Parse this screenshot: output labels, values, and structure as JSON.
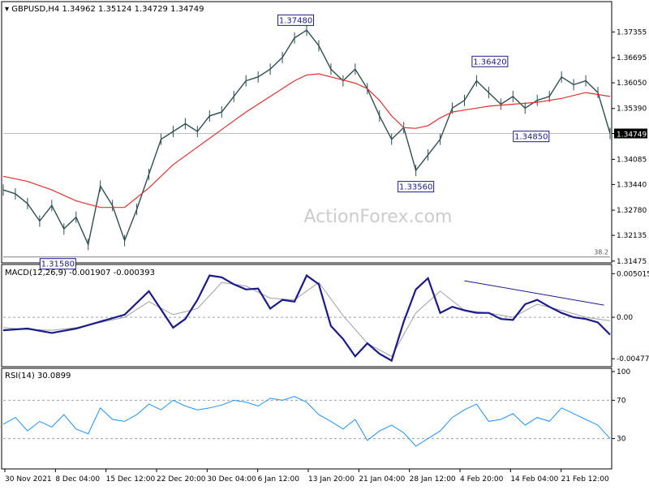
{
  "header": {
    "symbol": "GBPUSD,H4",
    "open": "1.34962",
    "high": "1.35124",
    "low": "1.34729",
    "close": "1.34749"
  },
  "watermark": "ActionForex.com",
  "colors": {
    "price_bars": "#2f4f4f",
    "moving_average": "#e03030",
    "macd_line": "#1a1a8a",
    "macd_signal": "#a0a0a0",
    "rsi_line": "#1e90ff",
    "trendline": "#1a1a8a",
    "label_border": "#1a1a8a",
    "label_text": "#1a1a8a",
    "axis": "#000000",
    "grid_dashed": "#a0a0a0"
  },
  "chart_data": [
    {
      "type": "line",
      "name": "price",
      "title": "GBPUSD,H4 1.34962 1.35124 1.34729 1.34749",
      "ylim": [
        1.3147,
        1.3805
      ],
      "y_ticks": [
        "1.37355",
        "1.36695",
        "1.36050",
        "1.35390",
        "1.34749",
        "1.34085",
        "1.33440",
        "1.32780",
        "1.32135",
        "1.31475"
      ],
      "current_price_label": "1.34749",
      "x_ticks": [
        "30 Nov 2021",
        "8 Dec 04:00",
        "15 Dec 12:00",
        "22 Dec 20:00",
        "30 Dec 04:00",
        "6 Jan 12:00",
        "13 Jan 20:00",
        "21 Jan 04:00",
        "28 Jan 12:00",
        "4 Feb 20:00",
        "14 Feb 04:00",
        "21 Feb 12:00"
      ],
      "annotations": [
        {
          "text": "1.37480",
          "x": 0.482,
          "y": 1.3748
        },
        {
          "text": "1.36420",
          "x": 0.802,
          "y": 1.3642
        },
        {
          "text": "1.34850",
          "x": 0.87,
          "y": 1.3485
        },
        {
          "text": "1.33560",
          "x": 0.68,
          "y": 1.3356
        },
        {
          "text": "1.31580",
          "x": 0.09,
          "y": 1.3158
        }
      ],
      "fib_level": {
        "label": "38.2",
        "y": 1.3158
      },
      "series": [
        {
          "name": "price",
          "x": [
            0.0,
            0.02,
            0.04,
            0.06,
            0.08,
            0.1,
            0.12,
            0.14,
            0.16,
            0.18,
            0.2,
            0.22,
            0.24,
            0.26,
            0.28,
            0.3,
            0.32,
            0.34,
            0.36,
            0.38,
            0.4,
            0.42,
            0.44,
            0.46,
            0.48,
            0.5,
            0.52,
            0.54,
            0.56,
            0.58,
            0.6,
            0.62,
            0.64,
            0.66,
            0.68,
            0.7,
            0.72,
            0.74,
            0.76,
            0.78,
            0.8,
            0.82,
            0.84,
            0.86,
            0.88,
            0.9,
            0.92,
            0.94,
            0.96,
            0.98,
            1.0
          ],
          "y": [
            1.333,
            1.332,
            1.3295,
            1.325,
            1.329,
            1.323,
            1.326,
            1.319,
            1.334,
            1.329,
            1.32,
            1.328,
            1.337,
            1.346,
            1.348,
            1.35,
            1.348,
            1.352,
            1.353,
            1.357,
            1.361,
            1.362,
            1.364,
            1.367,
            1.372,
            1.374,
            1.37,
            1.364,
            1.361,
            1.364,
            1.359,
            1.352,
            1.346,
            1.349,
            1.338,
            1.342,
            1.346,
            1.354,
            1.356,
            1.361,
            1.358,
            1.355,
            1.357,
            1.354,
            1.356,
            1.357,
            1.362,
            1.36,
            1.361,
            1.358,
            1.3475
          ]
        },
        {
          "name": "moving average",
          "x": [
            0.0,
            0.04,
            0.08,
            0.12,
            0.16,
            0.2,
            0.24,
            0.28,
            0.32,
            0.36,
            0.4,
            0.44,
            0.48,
            0.5,
            0.52,
            0.54,
            0.56,
            0.58,
            0.6,
            0.62,
            0.64,
            0.66,
            0.68,
            0.7,
            0.72,
            0.74,
            0.76,
            0.78,
            0.8,
            0.84,
            0.88,
            0.92,
            0.96,
            1.0
          ],
          "y": [
            1.3365,
            1.3352,
            1.333,
            1.3302,
            1.3285,
            1.3285,
            1.3335,
            1.3395,
            1.344,
            1.3485,
            1.353,
            1.357,
            1.361,
            1.3625,
            1.3628,
            1.362,
            1.3612,
            1.3604,
            1.359,
            1.356,
            1.352,
            1.349,
            1.3488,
            1.3495,
            1.3515,
            1.353,
            1.3535,
            1.354,
            1.3545,
            1.355,
            1.3555,
            1.3565,
            1.358,
            1.357
          ]
        }
      ]
    },
    {
      "type": "line",
      "name": "macd",
      "title": "MACD(12,26,9) -0.001907 -0.000393",
      "ylim": [
        -0.0055,
        0.0057
      ],
      "y_ticks": [
        "0.005015",
        "0.00",
        "-0.004773"
      ],
      "trendline": {
        "x": [
          0.76,
          0.99
        ],
        "y": [
          0.0042,
          0.0014
        ]
      },
      "series": [
        {
          "name": "MACD",
          "x": [
            0.0,
            0.04,
            0.08,
            0.12,
            0.16,
            0.2,
            0.24,
            0.28,
            0.3,
            0.32,
            0.34,
            0.36,
            0.38,
            0.4,
            0.42,
            0.44,
            0.46,
            0.48,
            0.5,
            0.52,
            0.54,
            0.56,
            0.58,
            0.6,
            0.62,
            0.64,
            0.66,
            0.68,
            0.7,
            0.72,
            0.74,
            0.76,
            0.78,
            0.8,
            0.82,
            0.84,
            0.86,
            0.88,
            0.9,
            0.92,
            0.94,
            0.96,
            0.98,
            1.0
          ],
          "y": [
            -0.0015,
            -0.0013,
            -0.0018,
            -0.0013,
            -0.0005,
            0.0003,
            0.003,
            -0.0012,
            -0.0002,
            0.002,
            0.0048,
            0.0046,
            0.0038,
            0.0032,
            0.0033,
            0.001,
            0.002,
            0.0018,
            0.0048,
            0.0038,
            -0.001,
            -0.0025,
            -0.0045,
            -0.003,
            -0.0042,
            -0.005,
            -0.0005,
            0.0032,
            0.0045,
            0.0005,
            0.0012,
            0.0008,
            0.0005,
            0.0005,
            -0.0002,
            -0.0003,
            0.0015,
            0.002,
            0.0012,
            0.0005,
            0.0,
            -0.0002,
            -0.0006,
            -0.002
          ]
        },
        {
          "name": "Signal",
          "x": [
            0.0,
            0.04,
            0.08,
            0.12,
            0.16,
            0.2,
            0.24,
            0.28,
            0.32,
            0.36,
            0.4,
            0.44,
            0.48,
            0.52,
            0.56,
            0.6,
            0.64,
            0.68,
            0.72,
            0.76,
            0.8,
            0.84,
            0.88,
            0.92,
            0.96,
            1.0
          ],
          "y": [
            -0.0012,
            -0.0014,
            -0.0015,
            -0.0012,
            -0.0006,
            0.0,
            0.0018,
            0.0003,
            0.001,
            0.004,
            0.0036,
            0.0022,
            0.002,
            0.004,
            0.0002,
            -0.003,
            -0.0045,
            0.0005,
            0.003,
            0.0008,
            0.0005,
            0.0,
            0.0015,
            0.0008,
            0.0,
            -0.0004
          ]
        }
      ]
    },
    {
      "type": "line",
      "name": "rsi",
      "title": "RSI(14) 30.0899",
      "ylim": [
        0,
        100
      ],
      "y_ticks": [
        "100",
        "70",
        "30"
      ],
      "levels": [
        70,
        30
      ],
      "series": [
        {
          "name": "RSI",
          "x": [
            0.0,
            0.02,
            0.04,
            0.06,
            0.08,
            0.1,
            0.12,
            0.14,
            0.16,
            0.18,
            0.2,
            0.22,
            0.24,
            0.26,
            0.28,
            0.3,
            0.32,
            0.34,
            0.36,
            0.38,
            0.4,
            0.42,
            0.44,
            0.46,
            0.48,
            0.5,
            0.52,
            0.54,
            0.56,
            0.58,
            0.6,
            0.62,
            0.64,
            0.66,
            0.68,
            0.7,
            0.72,
            0.74,
            0.76,
            0.78,
            0.8,
            0.82,
            0.84,
            0.86,
            0.88,
            0.9,
            0.92,
            0.94,
            0.96,
            0.98,
            1.0
          ],
          "y": [
            45,
            52,
            38,
            48,
            42,
            55,
            40,
            35,
            62,
            50,
            48,
            55,
            66,
            60,
            70,
            64,
            60,
            62,
            65,
            70,
            68,
            64,
            72,
            70,
            74,
            68,
            55,
            48,
            40,
            50,
            28,
            38,
            44,
            36,
            22,
            30,
            38,
            52,
            60,
            66,
            48,
            50,
            56,
            44,
            52,
            48,
            62,
            56,
            50,
            44,
            30
          ]
        }
      ]
    }
  ]
}
